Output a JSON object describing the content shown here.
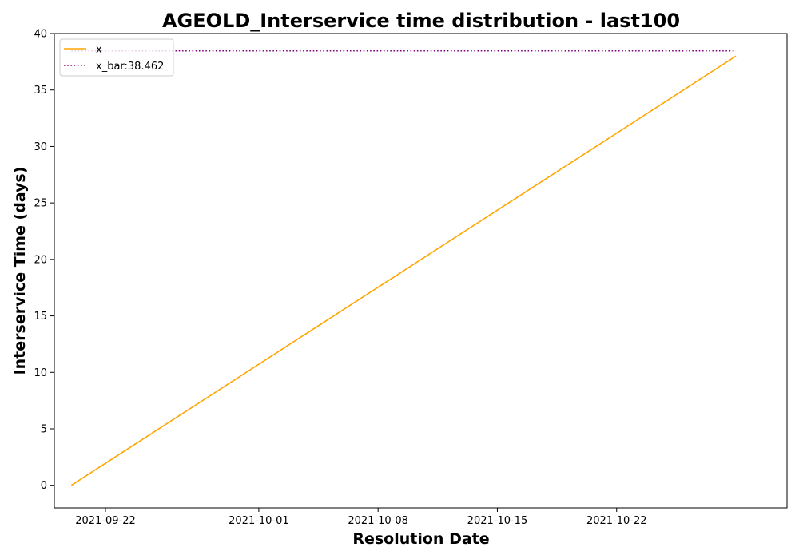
{
  "chart_data": {
    "type": "line",
    "title": "AGEOLD_Interservice time distribution - last100",
    "xlabel": "Resolution Date",
    "ylabel": "Interservice Time (days)",
    "x_type": "date",
    "xlim": [
      "2021-09-19",
      "2021-11-01"
    ],
    "ylim": [
      -2,
      40
    ],
    "x_ticks": [
      "2021-09-22",
      "2021-10-01",
      "2021-10-08",
      "2021-10-15",
      "2021-10-22"
    ],
    "y_ticks": [
      0,
      5,
      10,
      15,
      20,
      25,
      30,
      35,
      40
    ],
    "grid": false,
    "legend_position": "top-left",
    "series": [
      {
        "name": "x",
        "style": "solid",
        "color": "#ffa500",
        "x": [
          "2021-09-20",
          "2021-10-29"
        ],
        "y": [
          0,
          38
        ]
      },
      {
        "name": "x_bar:38.462",
        "style": "dotted",
        "color": "#800080",
        "x": [
          "2021-09-20",
          "2021-10-29"
        ],
        "y": [
          38.462,
          38.462
        ]
      }
    ]
  }
}
